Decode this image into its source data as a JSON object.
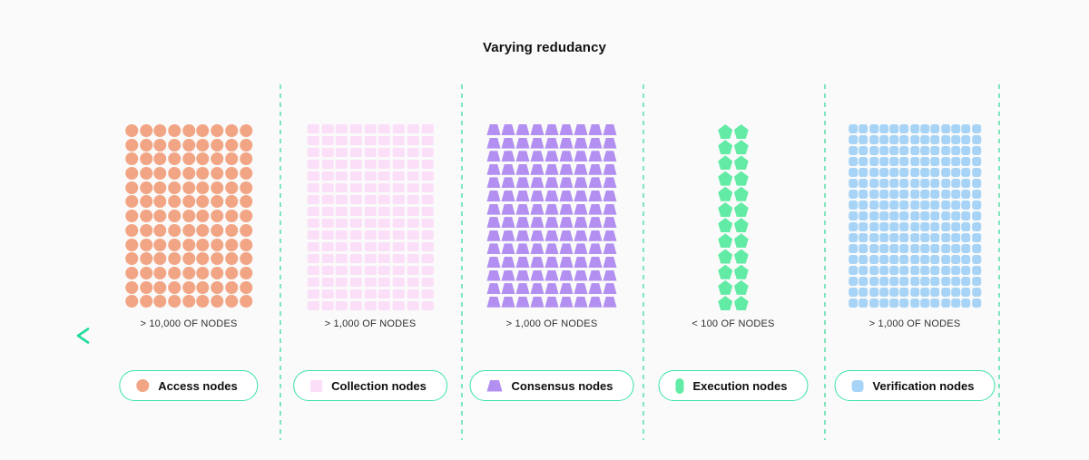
{
  "title": "Varying redudancy",
  "colors": {
    "background": "#fafafa",
    "pill_border": "#3be3a6",
    "separator_dash": "#7fe5bb",
    "arrow_start": "#1fdd9b",
    "arrow_mid": "#13ce8c",
    "arrow_end": "#0d7f56"
  },
  "sections": [
    {
      "id": "access",
      "label": "Access nodes",
      "count_label": "> 10,000 OF NODES",
      "shape": "circle",
      "icon_shape": "circle",
      "color": "#f2a584",
      "columns": 9,
      "rows": 13
    },
    {
      "id": "collection",
      "label": "Collection nodes",
      "count_label": "> 1,000 OF NODES",
      "shape": "rect",
      "icon_shape": "rect",
      "color": "#fbdef8",
      "columns": 9,
      "rows": 16
    },
    {
      "id": "consensus",
      "label": "Consensus nodes",
      "count_label": "> 1,000 OF NODES",
      "shape": "trapezoid",
      "icon_shape": "trapezoid",
      "color": "#b28ff0",
      "columns": 9,
      "rows": 14
    },
    {
      "id": "execution",
      "label": "Execution nodes",
      "count_label": "< 100 OF NODES",
      "shape": "pentagon",
      "icon_shape": "capsule",
      "color": "#62eba5",
      "columns": 2,
      "rows": 12
    },
    {
      "id": "verification",
      "label": "Verification nodes",
      "count_label": "> 1,000 OF NODES",
      "shape": "rounded-square",
      "icon_shape": "rounded-square",
      "color": "#a7d4f6",
      "columns": 13,
      "rows": 17
    }
  ]
}
